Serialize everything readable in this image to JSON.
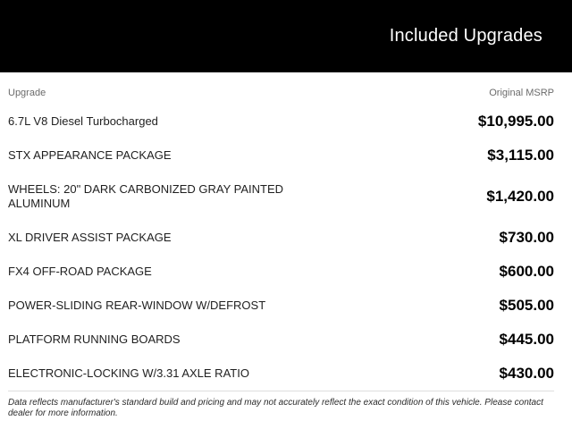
{
  "header": {
    "title": "Included Upgrades"
  },
  "table": {
    "columns": {
      "upgrade": "Upgrade",
      "msrp": "Original MSRP"
    },
    "rows": [
      {
        "name": "6.7L V8 Diesel Turbocharged",
        "price": "$10,995.00"
      },
      {
        "name": "STX APPEARANCE PACKAGE",
        "price": "$3,115.00"
      },
      {
        "name": "WHEELS: 20\" DARK CARBONIZED GRAY PAINTED ALUMINUM",
        "price": "$1,420.00"
      },
      {
        "name": "XL DRIVER ASSIST PACKAGE",
        "price": "$730.00"
      },
      {
        "name": "FX4 OFF-ROAD PACKAGE",
        "price": "$600.00"
      },
      {
        "name": "POWER-SLIDING REAR-WINDOW W/DEFROST",
        "price": "$505.00"
      },
      {
        "name": "PLATFORM RUNNING BOARDS",
        "price": "$445.00"
      },
      {
        "name": "ELECTRONIC-LOCKING W/3.31 AXLE RATIO",
        "price": "$430.00"
      }
    ]
  },
  "footer": {
    "disclaimer": "Data reflects manufacturer's standard build and pricing and may not accurately reflect the exact condition of this vehicle. Please contact dealer for more information."
  },
  "colors": {
    "header_bg": "#000000",
    "header_text": "#ffffff",
    "column_header_text": "#6b6b6b",
    "row_text": "#1f1f1f",
    "price_text": "#000000",
    "divider": "#dedede",
    "footer_text": "#2b2b2b",
    "page_bg": "#ffffff"
  }
}
